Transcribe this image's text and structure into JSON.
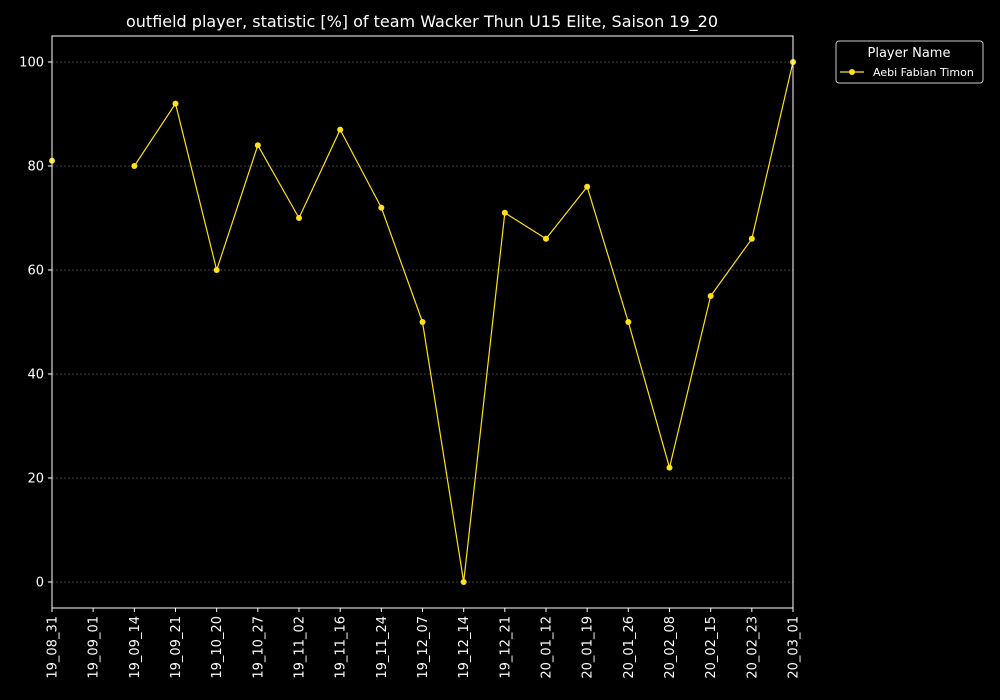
{
  "chart_data": {
    "type": "line",
    "title": "outfield player, statistic [%] of team Wacker Thun U15 Elite, Saison 19_20",
    "xlabel": "",
    "ylabel": "",
    "categories": [
      "19_08_31",
      "19_09_01",
      "19_09_14",
      "19_09_21",
      "19_10_20",
      "19_10_27",
      "19_11_02",
      "19_11_16",
      "19_11_24",
      "19_12_07",
      "19_12_14",
      "19_12_21",
      "20_01_12",
      "20_01_19",
      "20_01_26",
      "20_02_08",
      "20_02_15",
      "20_02_23",
      "20_03_01"
    ],
    "yticks": [
      0,
      20,
      40,
      60,
      80,
      100
    ],
    "ylim": [
      -5,
      105
    ],
    "grid": true,
    "legend": {
      "title": "Player Name",
      "placement": "outside top-right"
    },
    "series": [
      {
        "name": "Aebi Fabian Timon",
        "color": "#ffe119",
        "values": [
          81,
          null,
          80,
          92,
          60,
          84,
          70,
          87,
          72,
          50,
          0,
          71,
          66,
          76,
          50,
          22,
          55,
          66,
          100
        ]
      }
    ],
    "colors": {
      "background": "#000000",
      "axis": "#ffffff",
      "grid": "#808080"
    }
  }
}
